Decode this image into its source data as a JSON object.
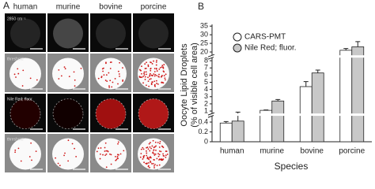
{
  "panel_a": {
    "label": "A",
    "columns": [
      "human",
      "murine",
      "bovine",
      "porcine"
    ],
    "rows": [
      "2850 cm⁻¹",
      "threshold",
      "Nile Red; fluor.",
      "threshold"
    ]
  },
  "chart_data": {
    "type": "bar",
    "panel_label": "B",
    "ylabel": [
      "Oocyte Lipid Droplets",
      "(% of visible cell area)"
    ],
    "xlabel": "Species",
    "categories": [
      "human",
      "murine",
      "bovine",
      "porcine"
    ],
    "series": [
      {
        "name": "CARS-PMT",
        "color": "#ffffff",
        "values": [
          0.38,
          1.1,
          4.4,
          21
        ],
        "errors": [
          0.03,
          0.05,
          0.7,
          1
        ]
      },
      {
        "name": "Nile Red; fluor.",
        "color": "#c8c8c8",
        "values": [
          0.42,
          2.4,
          6.3,
          23
        ],
        "errors": [
          0.1,
          0.2,
          0.4,
          3
        ]
      }
    ],
    "segments": [
      {
        "ylim": [
          0,
          0.5
        ],
        "yticks": [
          0,
          0.2,
          0.4
        ]
      },
      {
        "ylim": [
          0.85,
          8.45
        ],
        "yticks": [
          1,
          2,
          3,
          4,
          5,
          6,
          7,
          8
        ]
      },
      {
        "ylim": [
          18,
          36
        ],
        "yticks": [
          20,
          25,
          30,
          35
        ]
      }
    ],
    "legend": "upper left"
  }
}
